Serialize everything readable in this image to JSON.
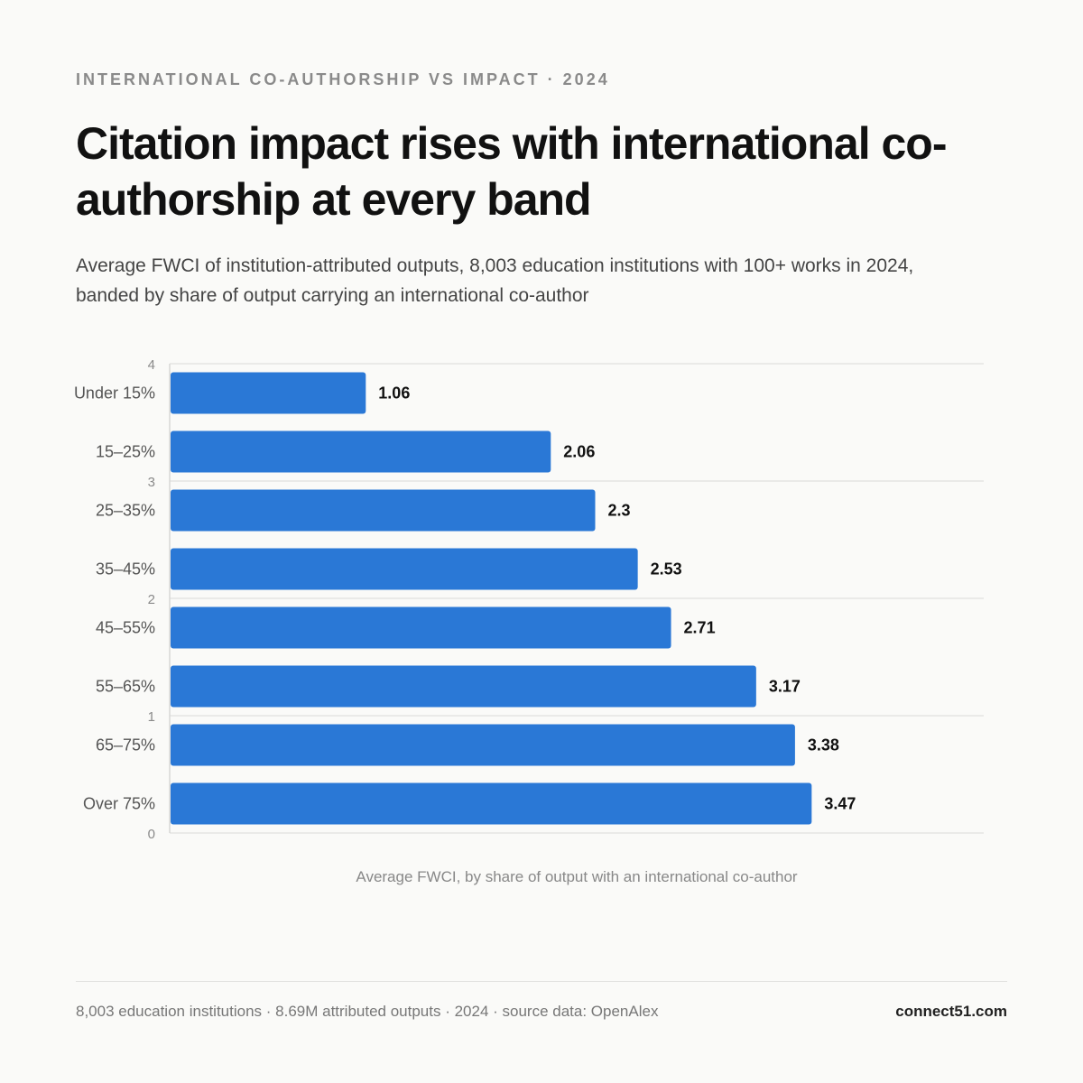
{
  "header": {
    "kicker": "INTERNATIONAL CO-AUTHORSHIP VS IMPACT · 2024",
    "title": "Citation impact rises with international co-authorship at every band",
    "subtitle": "Average FWCI of institution-attributed outputs, 8,003 education institutions with 100+ works in 2024, banded by share of output carrying an international co-author"
  },
  "chart_data": {
    "type": "bar",
    "orientation": "horizontal",
    "categories": [
      "Under 15%",
      "15–25%",
      "25–35%",
      "35–45%",
      "45–55%",
      "55–65%",
      "65–75%",
      "Over 75%"
    ],
    "values": [
      1.06,
      2.06,
      2.3,
      2.53,
      2.71,
      3.17,
      3.38,
      3.47
    ],
    "value_labels": [
      "1.06",
      "2.06",
      "2.3",
      "2.53",
      "2.71",
      "3.17",
      "3.38",
      "3.47"
    ],
    "xlim": [
      0,
      4.4
    ],
    "y_axis_ticks": [
      "4",
      "3",
      "2",
      "1",
      "0"
    ],
    "xlabel": "Average FWCI, by share of output with an international co-author",
    "bar_color": "#2a78d6",
    "grid": true
  },
  "footer": {
    "note": "8,003 education institutions · 8.69M attributed outputs · 2024 · source data: OpenAlex",
    "brand": "connect51.com"
  }
}
